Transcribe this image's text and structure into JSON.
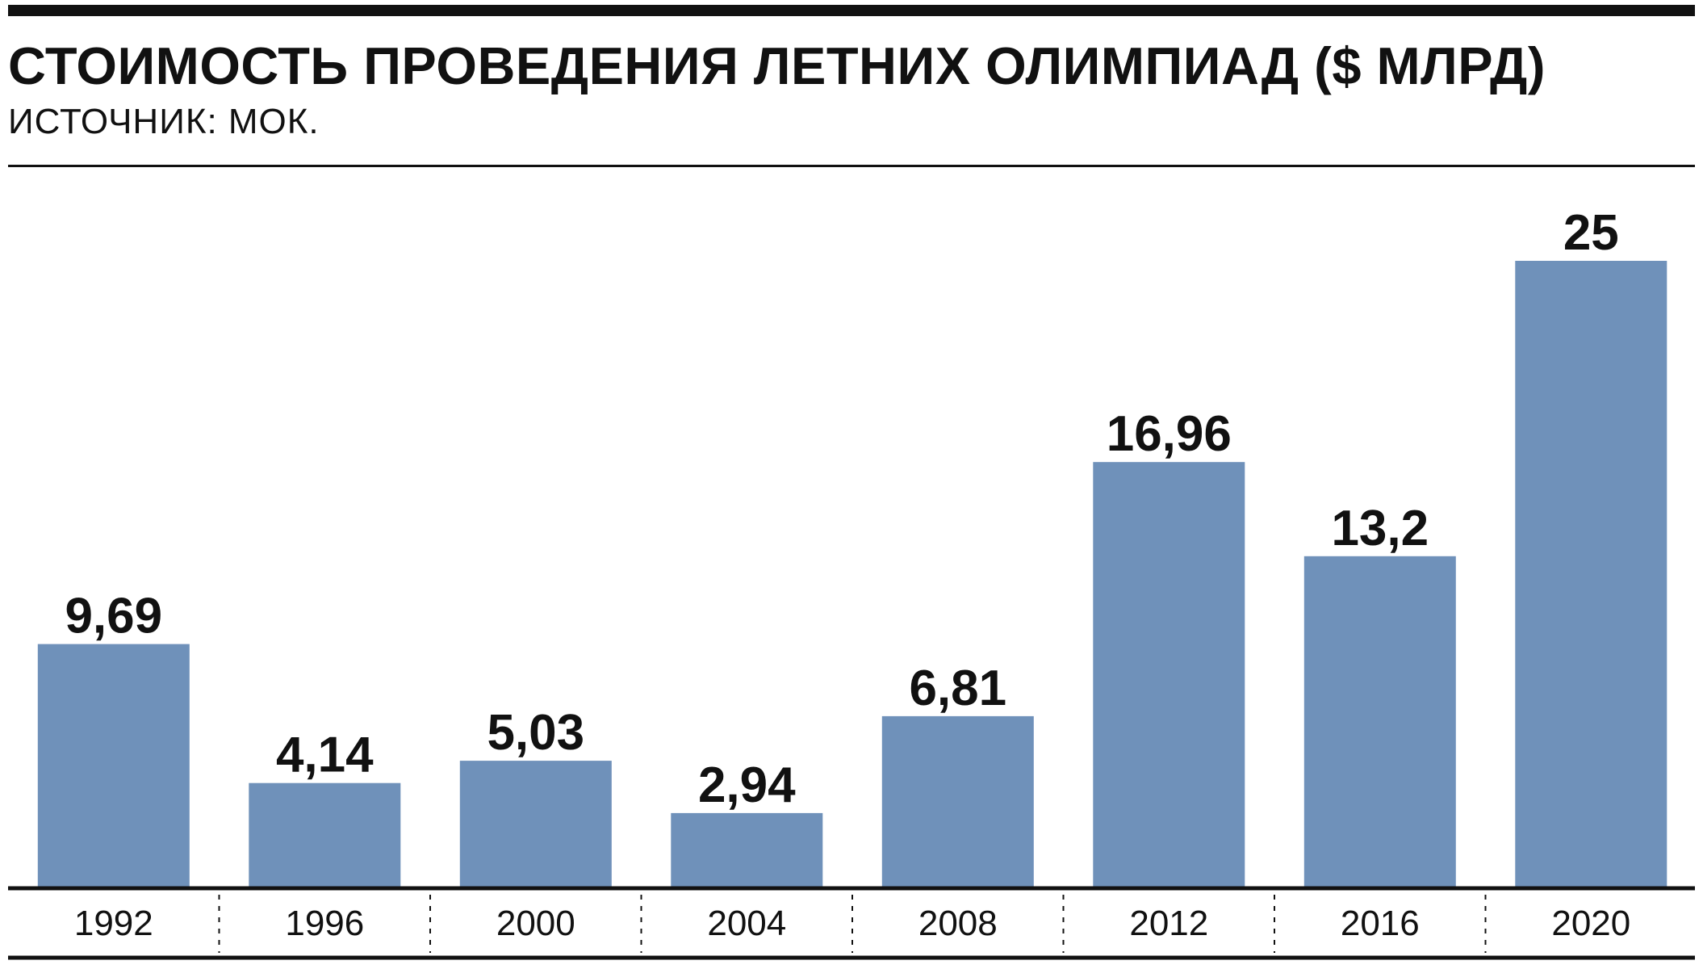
{
  "header": {
    "title": "СТОИМОСТЬ ПРОВЕДЕНИЯ ЛЕТНИХ ОЛИМПИАД ($ МЛРД)",
    "source": "ИСТОЧНИК: МОК."
  },
  "chart_data": {
    "type": "bar",
    "title": "СТОИМОСТЬ ПРОВЕДЕНИЯ ЛЕТНИХ ОЛИМПИАД ($ МЛРД)",
    "subtitle": "ИСТОЧНИК: МОК.",
    "categories": [
      "1992",
      "1996",
      "2000",
      "2004",
      "2008",
      "2012",
      "2016",
      "2020"
    ],
    "values": [
      9.69,
      4.14,
      5.03,
      2.94,
      6.81,
      16.96,
      13.2,
      25
    ],
    "value_labels": [
      "9,69",
      "4,14",
      "5,03",
      "2,94",
      "6,81",
      "16,96",
      "13,2",
      "25"
    ],
    "xlabel": "",
    "ylabel": "",
    "ylim": [
      0,
      25
    ],
    "grid": false,
    "legend": "none",
    "bar_color": "#6f91ba"
  }
}
